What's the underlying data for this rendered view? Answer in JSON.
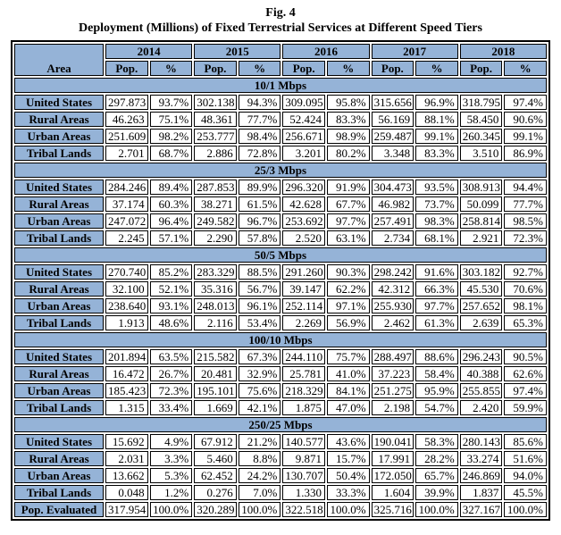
{
  "title": "Fig. 4",
  "subtitle": "Deployment (Millions) of Fixed Terrestrial Services at Different Speed Tiers",
  "colors": {
    "header_bg": "#95B3D7",
    "cell_bg": "#FFFFFF",
    "border": "#000000"
  },
  "table": {
    "area_header": "Area",
    "years": [
      "2014",
      "2015",
      "2016",
      "2017",
      "2018"
    ],
    "sub_headers": [
      "Pop.",
      "%"
    ],
    "sections": [
      {
        "label": "10/1 Mbps",
        "rows": [
          {
            "area": "United States",
            "values": [
              "297.873",
              "93.7%",
              "302.138",
              "94.3%",
              "309.095",
              "95.8%",
              "315.656",
              "96.9%",
              "318.795",
              "97.4%"
            ]
          },
          {
            "area": "Rural Areas",
            "values": [
              "46.263",
              "75.1%",
              "48.361",
              "77.7%",
              "52.424",
              "83.3%",
              "56.169",
              "88.1%",
              "58.450",
              "90.6%"
            ]
          },
          {
            "area": "Urban Areas",
            "values": [
              "251.609",
              "98.2%",
              "253.777",
              "98.4%",
              "256.671",
              "98.9%",
              "259.487",
              "99.1%",
              "260.345",
              "99.1%"
            ]
          },
          {
            "area": "Tribal Lands",
            "values": [
              "2.701",
              "68.7%",
              "2.886",
              "72.8%",
              "3.201",
              "80.2%",
              "3.348",
              "83.3%",
              "3.510",
              "86.9%"
            ]
          }
        ]
      },
      {
        "label": "25/3 Mbps",
        "rows": [
          {
            "area": "United States",
            "values": [
              "284.246",
              "89.4%",
              "287.853",
              "89.9%",
              "296.320",
              "91.9%",
              "304.473",
              "93.5%",
              "308.913",
              "94.4%"
            ]
          },
          {
            "area": "Rural Areas",
            "values": [
              "37.174",
              "60.3%",
              "38.271",
              "61.5%",
              "42.628",
              "67.7%",
              "46.982",
              "73.7%",
              "50.099",
              "77.7%"
            ]
          },
          {
            "area": "Urban Areas",
            "values": [
              "247.072",
              "96.4%",
              "249.582",
              "96.7%",
              "253.692",
              "97.7%",
              "257.491",
              "98.3%",
              "258.814",
              "98.5%"
            ]
          },
          {
            "area": "Tribal Lands",
            "values": [
              "2.245",
              "57.1%",
              "2.290",
              "57.8%",
              "2.520",
              "63.1%",
              "2.734",
              "68.1%",
              "2.921",
              "72.3%"
            ]
          }
        ]
      },
      {
        "label": "50/5 Mbps",
        "rows": [
          {
            "area": "United States",
            "values": [
              "270.740",
              "85.2%",
              "283.329",
              "88.5%",
              "291.260",
              "90.3%",
              "298.242",
              "91.6%",
              "303.182",
              "92.7%"
            ]
          },
          {
            "area": "Rural Areas",
            "values": [
              "32.100",
              "52.1%",
              "35.316",
              "56.7%",
              "39.147",
              "62.2%",
              "42.312",
              "66.3%",
              "45.530",
              "70.6%"
            ]
          },
          {
            "area": "Urban Areas",
            "values": [
              "238.640",
              "93.1%",
              "248.013",
              "96.1%",
              "252.114",
              "97.1%",
              "255.930",
              "97.7%",
              "257.652",
              "98.1%"
            ]
          },
          {
            "area": "Tribal Lands",
            "values": [
              "1.913",
              "48.6%",
              "2.116",
              "53.4%",
              "2.269",
              "56.9%",
              "2.462",
              "61.3%",
              "2.639",
              "65.3%"
            ]
          }
        ]
      },
      {
        "label": "100/10 Mbps",
        "rows": [
          {
            "area": "United States",
            "values": [
              "201.894",
              "63.5%",
              "215.582",
              "67.3%",
              "244.110",
              "75.7%",
              "288.497",
              "88.6%",
              "296.243",
              "90.5%"
            ]
          },
          {
            "area": "Rural Areas",
            "values": [
              "16.472",
              "26.7%",
              "20.481",
              "32.9%",
              "25.781",
              "41.0%",
              "37.223",
              "58.4%",
              "40.388",
              "62.6%"
            ]
          },
          {
            "area": "Urban Areas",
            "values": [
              "185.423",
              "72.3%",
              "195.101",
              "75.6%",
              "218.329",
              "84.1%",
              "251.275",
              "95.9%",
              "255.855",
              "97.4%"
            ]
          },
          {
            "area": "Tribal Lands",
            "values": [
              "1.315",
              "33.4%",
              "1.669",
              "42.1%",
              "1.875",
              "47.0%",
              "2.198",
              "54.7%",
              "2.420",
              "59.9%"
            ]
          }
        ]
      },
      {
        "label": "250/25 Mbps",
        "rows": [
          {
            "area": "United States",
            "values": [
              "15.692",
              "4.9%",
              "67.912",
              "21.2%",
              "140.577",
              "43.6%",
              "190.041",
              "58.3%",
              "280.143",
              "85.6%"
            ]
          },
          {
            "area": "Rural Areas",
            "values": [
              "2.031",
              "3.3%",
              "5.460",
              "8.8%",
              "9.871",
              "15.7%",
              "17.991",
              "28.2%",
              "33.274",
              "51.6%"
            ]
          },
          {
            "area": "Urban Areas",
            "values": [
              "13.662",
              "5.3%",
              "62.452",
              "24.2%",
              "130.707",
              "50.4%",
              "172.050",
              "65.7%",
              "246.869",
              "94.0%"
            ]
          },
          {
            "area": "Tribal Lands",
            "values": [
              "0.048",
              "1.2%",
              "0.276",
              "7.0%",
              "1.330",
              "33.3%",
              "1.604",
              "39.9%",
              "1.837",
              "45.5%"
            ]
          }
        ]
      }
    ],
    "footer_row": {
      "area": "Pop. Evaluated",
      "values": [
        "317.954",
        "100.0%",
        "320.289",
        "100.0%",
        "322.518",
        "100.0%",
        "325.716",
        "100.0%",
        "327.167",
        "100.0%"
      ]
    }
  }
}
